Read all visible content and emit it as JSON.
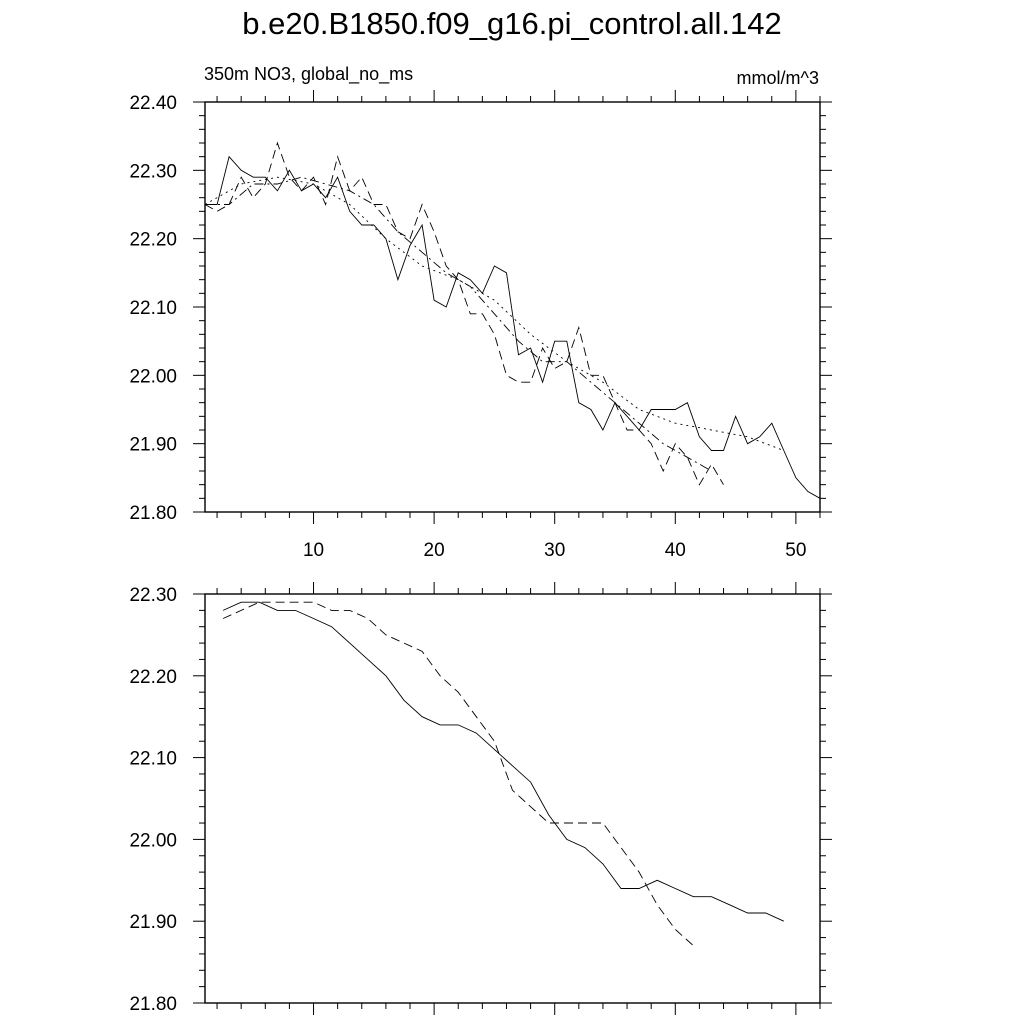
{
  "title": "b.e20.B1850.f09_g16.pi_control.all.142",
  "subtitle_left": "350m NO3, global_no_ms",
  "subtitle_right": "mmol/m^3",
  "chart_data": [
    {
      "type": "line",
      "xlim": [
        1,
        52
      ],
      "ylim": [
        21.8,
        22.4
      ],
      "x_ticks": [
        10,
        20,
        30,
        40,
        50
      ],
      "x_tick_labels": [
        "10",
        "20",
        "30",
        "40",
        "50"
      ],
      "y_ticks": [
        21.8,
        21.9,
        22.0,
        22.1,
        22.2,
        22.3,
        22.4
      ],
      "y_tick_labels": [
        "21.80",
        "21.90",
        "22.00",
        "22.10",
        "22.20",
        "22.30",
        "22.40"
      ],
      "series": [
        {
          "style": "solid",
          "x": [
            1,
            2,
            3,
            4,
            5,
            6,
            7,
            8,
            9,
            10,
            11,
            12,
            13,
            14,
            15,
            16,
            17,
            18,
            19,
            20,
            21,
            22,
            23,
            24,
            25,
            26,
            27,
            28,
            29,
            30,
            31,
            32,
            33,
            34,
            35,
            36,
            37,
            38,
            39,
            40,
            41,
            42,
            43,
            44,
            45,
            46,
            47,
            48,
            49,
            50,
            51,
            52
          ],
          "y": [
            22.25,
            22.25,
            22.32,
            22.3,
            22.29,
            22.29,
            22.27,
            22.3,
            22.27,
            22.28,
            22.26,
            22.29,
            22.24,
            22.22,
            22.22,
            22.2,
            22.14,
            22.19,
            22.22,
            22.11,
            22.1,
            22.15,
            22.14,
            22.12,
            22.16,
            22.15,
            22.03,
            22.04,
            21.99,
            22.05,
            22.05,
            21.96,
            21.95,
            21.92,
            21.96,
            21.94,
            21.92,
            21.95,
            21.95,
            21.95,
            21.96,
            21.91,
            21.89,
            21.89,
            21.94,
            21.9,
            21.91,
            21.93,
            21.89,
            21.85,
            21.83,
            21.82
          ]
        },
        {
          "style": "dashed",
          "x": [
            1,
            2,
            3,
            4,
            5,
            6,
            7,
            8,
            9,
            10,
            11,
            12,
            13,
            14,
            15,
            16,
            17,
            18,
            19,
            20,
            21,
            22,
            23,
            24,
            25,
            26,
            27,
            28,
            29,
            30,
            31,
            32,
            33,
            34,
            35,
            36,
            37,
            38,
            39,
            40,
            41,
            42,
            43,
            44
          ],
          "y": [
            22.25,
            22.24,
            22.25,
            22.29,
            22.26,
            22.28,
            22.34,
            22.29,
            22.27,
            22.29,
            22.25,
            22.32,
            22.27,
            22.29,
            22.25,
            22.25,
            22.21,
            22.2,
            22.25,
            22.21,
            22.16,
            22.14,
            22.09,
            22.09,
            22.06,
            22.0,
            21.99,
            21.99,
            22.04,
            22.01,
            22.02,
            22.07,
            22.0,
            22.0,
            21.96,
            21.92,
            21.92,
            21.9,
            21.86,
            21.9,
            21.88,
            21.84,
            21.87,
            21.84
          ]
        },
        {
          "style": "dash-dot",
          "x": [
            1,
            3,
            5,
            7,
            9,
            11,
            13,
            15,
            17,
            19,
            21,
            23,
            25,
            27,
            29,
            31,
            33,
            35,
            37,
            39,
            41,
            43
          ],
          "y": [
            22.25,
            22.25,
            22.28,
            22.28,
            22.29,
            22.28,
            22.27,
            22.25,
            22.21,
            22.18,
            22.15,
            22.13,
            22.09,
            22.05,
            22.02,
            22.02,
            21.99,
            21.96,
            21.93,
            21.9,
            21.88,
            21.86
          ]
        },
        {
          "style": "dotted",
          "x": [
            1,
            4,
            7,
            10,
            13,
            16,
            19,
            22,
            25,
            28,
            31,
            34,
            37,
            40,
            43,
            46,
            49
          ],
          "y": [
            22.25,
            22.28,
            22.29,
            22.28,
            22.25,
            22.2,
            22.16,
            22.14,
            22.11,
            22.06,
            22.02,
            21.99,
            21.95,
            21.93,
            21.92,
            21.91,
            21.89
          ]
        }
      ]
    },
    {
      "type": "line",
      "xlim": [
        1,
        52
      ],
      "ylim": [
        21.8,
        22.3
      ],
      "x_ticks": [
        10,
        20,
        30,
        40,
        50
      ],
      "x_tick_labels": [],
      "y_ticks": [
        21.8,
        21.9,
        22.0,
        22.1,
        22.2,
        22.3
      ],
      "y_tick_labels": [
        "21.80",
        "21.90",
        "22.00",
        "22.10",
        "22.20",
        "22.30"
      ],
      "series": [
        {
          "style": "solid",
          "x": [
            2.5,
            4,
            5.5,
            7,
            8.5,
            10,
            11.5,
            13,
            14.5,
            16,
            17.5,
            19,
            20.5,
            22,
            23.5,
            25,
            26.5,
            28,
            29.5,
            31,
            32.5,
            34,
            35.5,
            37,
            38.5,
            40,
            41.5,
            43,
            44.5,
            46,
            47.5,
            49
          ],
          "y": [
            22.28,
            22.29,
            22.29,
            22.28,
            22.28,
            22.27,
            22.26,
            22.24,
            22.22,
            22.2,
            22.17,
            22.15,
            22.14,
            22.14,
            22.13,
            22.11,
            22.09,
            22.07,
            22.03,
            22.0,
            21.99,
            21.97,
            21.94,
            21.94,
            21.95,
            21.94,
            21.93,
            21.93,
            21.92,
            21.91,
            21.91,
            21.9
          ]
        },
        {
          "style": "dashed",
          "x": [
            2.5,
            4,
            5.5,
            7,
            8.5,
            10,
            11.5,
            13,
            14.5,
            16,
            17.5,
            19,
            20.5,
            22,
            23.5,
            25,
            26.5,
            28,
            29.5,
            31,
            32.5,
            34,
            35.5,
            37,
            38.5,
            40,
            41.5
          ],
          "y": [
            22.27,
            22.28,
            22.29,
            22.29,
            22.29,
            22.29,
            22.28,
            22.28,
            22.27,
            22.25,
            22.24,
            22.23,
            22.2,
            22.18,
            22.15,
            22.12,
            22.06,
            22.04,
            22.02,
            22.02,
            22.02,
            22.02,
            21.99,
            21.96,
            21.92,
            21.89,
            21.87
          ]
        }
      ]
    }
  ]
}
